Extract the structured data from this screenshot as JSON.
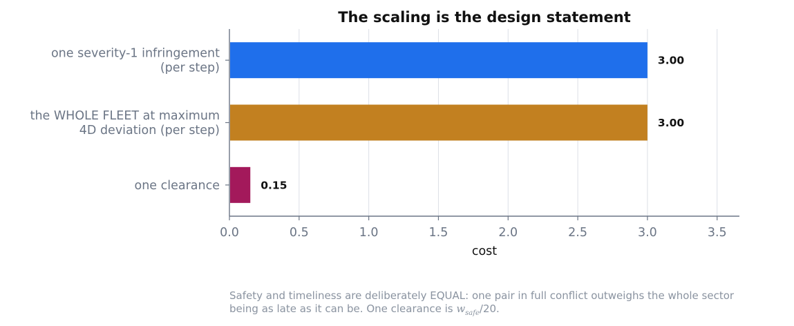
{
  "chart_data": {
    "type": "bar",
    "orientation": "horizontal",
    "title": "The scaling is the design statement",
    "xlabel": "cost",
    "ylabel": "",
    "xlim": [
      0,
      3.66
    ],
    "xticks": [
      "0.0",
      "0.5",
      "1.0",
      "1.5",
      "2.0",
      "2.5",
      "3.0",
      "3.5"
    ],
    "grid": "vertical",
    "categories": [
      [
        "one severity-1 infringement",
        "(per step)"
      ],
      [
        "the WHOLE FLEET at maximum",
        "4D deviation (per step)"
      ],
      [
        "one clearance"
      ]
    ],
    "values": [
      3.0,
      3.0,
      0.15
    ],
    "value_labels": [
      "3.00",
      "3.00",
      "0.15"
    ],
    "colors": [
      "#1f6feb",
      "#c28020",
      "#a3195b"
    ]
  },
  "footnote": {
    "line1": "Safety and timeliness are deliberately EQUAL: one pair in full conflict outweighs the whole sector",
    "line2_pre": "being as late as it can be. One clearance is ",
    "symbol": "w",
    "subscript": "safe",
    "line2_post": "/20."
  }
}
